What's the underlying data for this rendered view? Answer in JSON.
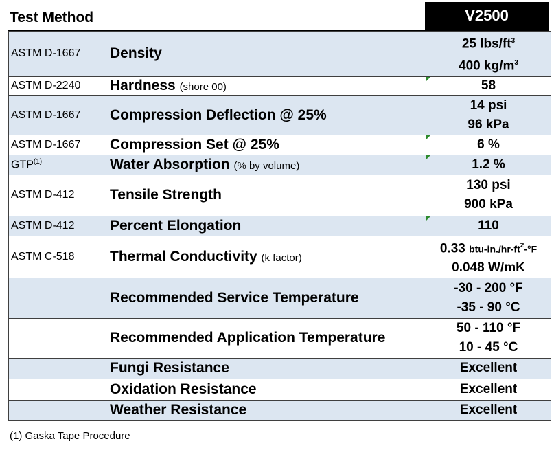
{
  "header": {
    "test_method": "Test Method",
    "product": "V2500"
  },
  "rows": [
    {
      "method": "ASTM D-1667",
      "property": "Density",
      "note": "",
      "v1": "25 lbs/ft",
      "v1sup": "3",
      "v2": "400 kg/m",
      "v2sup": "3"
    },
    {
      "method": "ASTM D-2240",
      "property": "Hardness",
      "note": "(shore 00)",
      "v1": "58"
    },
    {
      "method": "ASTM D-1667",
      "property": "Compression Deflection @ 25%",
      "note": "",
      "v1": "14 psi",
      "v2": "96 kPa"
    },
    {
      "method": "ASTM D-1667",
      "property": "Compression Set @ 25%",
      "note": "",
      "v1": "6 %"
    },
    {
      "method": "GTP",
      "method_sup": "(1)",
      "property": "Water Absorption",
      "note": "(% by volume)",
      "v1": "1.2 %"
    },
    {
      "method": "ASTM D-412",
      "property": "Tensile Strength",
      "note": "",
      "v1": "130 psi",
      "v2": "900 kPa"
    },
    {
      "method": "ASTM D-412",
      "property": "Percent Elongation",
      "note": "",
      "v1": "110"
    },
    {
      "method": "ASTM C-518",
      "property": "Thermal Conductivity",
      "note": "(k factor)",
      "v1": "0.33",
      "v1unit": "btu-in./hr-ft",
      "v1unitsup": "2",
      "v1unit2": "-°F",
      "v2": "0.048 W/mK"
    },
    {
      "method": "",
      "property": "Recommended Service Temperature",
      "note": "",
      "v1": "-30 - 200 °F",
      "v2": "-35 - 90 °C"
    },
    {
      "method": "",
      "property": "Recommended Application Temperature",
      "note": "",
      "v1": "50 - 110 °F",
      "v2": "10 - 45 °C"
    },
    {
      "method": "",
      "property": "Fungi Resistance",
      "note": "",
      "v1": "Excellent"
    },
    {
      "method": "",
      "property": "Oxidation Resistance",
      "note": "",
      "v1": "Excellent"
    },
    {
      "method": "",
      "property": "Weather Resistance",
      "note": "",
      "v1": "Excellent"
    }
  ],
  "footnote": "(1) Gaska Tape Procedure"
}
